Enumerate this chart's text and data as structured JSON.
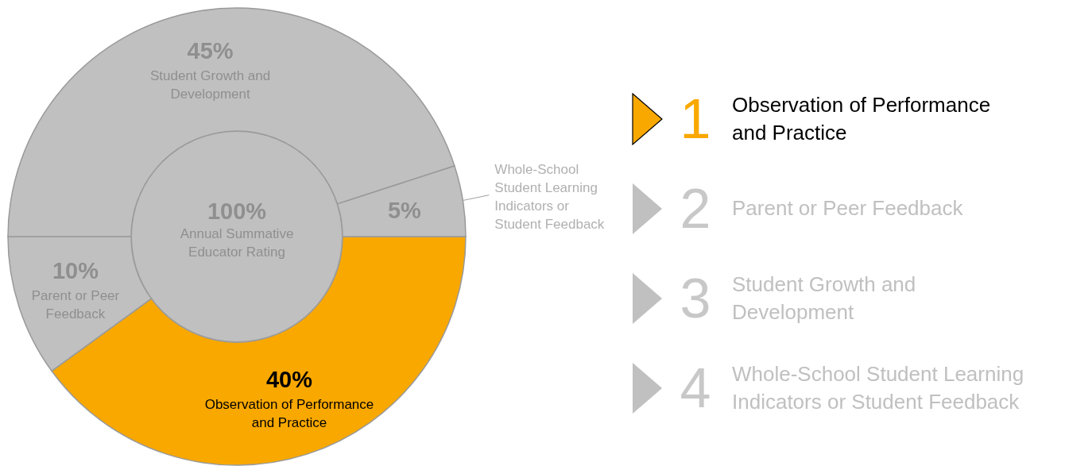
{
  "chart_data": {
    "type": "donut",
    "categories": [
      "Observation of Performance and Practice",
      "Parent or Peer Feedback",
      "Student Growth and Development",
      "Whole-School Student Learning Indicators or Student Feedback"
    ],
    "values": [
      40,
      10,
      45,
      5
    ],
    "value_labels": [
      "40%",
      "10%",
      "45%",
      "5%"
    ],
    "colors": [
      "#f9a800",
      "#c0c0c0",
      "#c0c0c0",
      "#c0c0c0"
    ],
    "annotations": [
      "100%",
      "Annual Summative Educator Rating",
      "1",
      "2",
      "3",
      "4"
    ]
  }
}
